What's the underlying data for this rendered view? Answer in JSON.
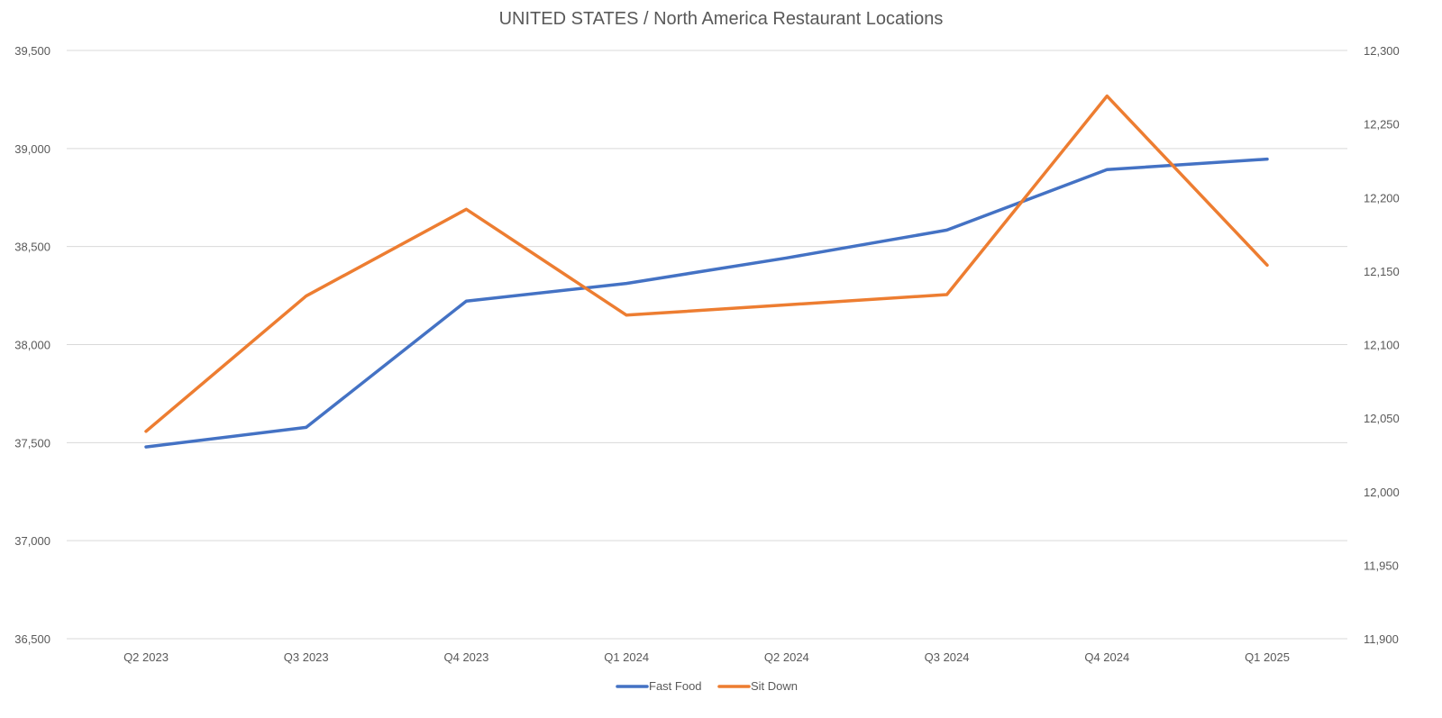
{
  "chart_data": {
    "type": "line",
    "title": "UNITED STATES / North America Restaurant Locations",
    "categories": [
      "Q2 2023",
      "Q3 2023",
      "Q4 2023",
      "Q1 2024",
      "Q2 2024",
      "Q3 2024",
      "Q4 2024",
      "Q1 2025"
    ],
    "y_left": {
      "ylim": [
        36500,
        39500
      ],
      "ticks": [
        36500,
        37000,
        37500,
        38000,
        38500,
        39000,
        39500
      ],
      "tick_labels": [
        "36,500",
        "37,000",
        "37,500",
        "38,000",
        "38,500",
        "39,000",
        "39,500"
      ]
    },
    "y_right": {
      "ylim": [
        11900,
        12300
      ],
      "ticks": [
        11900,
        11950,
        12000,
        12050,
        12100,
        12150,
        12200,
        12250,
        12300
      ],
      "tick_labels": [
        "11,900",
        "11,950",
        "12,000",
        "12,050",
        "12,100",
        "12,150",
        "12,200",
        "12,250",
        "12,300"
      ]
    },
    "series": [
      {
        "name": "Fast Food",
        "axis": "left",
        "color": "#4472c4",
        "values": [
          37478,
          37578,
          38222,
          38312,
          38442,
          38584,
          38892,
          38946
        ]
      },
      {
        "name": "Sit Down",
        "axis": "right",
        "color": "#ed7d31",
        "values": [
          12041,
          12133,
          12192,
          12120,
          12127,
          12134,
          12269,
          12154
        ]
      }
    ],
    "grid": true,
    "legend_position": "bottom"
  }
}
